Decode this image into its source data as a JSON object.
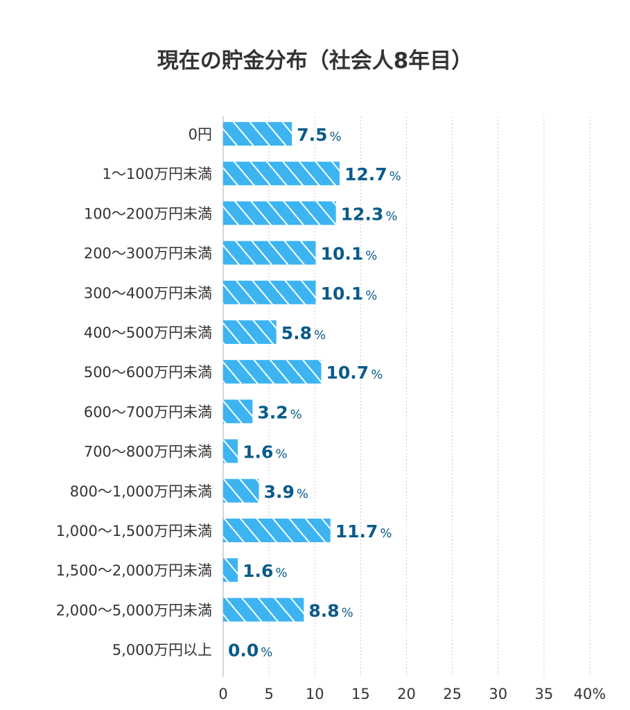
{
  "chart_data": {
    "type": "bar",
    "orientation": "horizontal",
    "title": "現在の貯金分布（社会人8年目）",
    "categories": [
      "0円",
      "1〜100万円未満",
      "100〜200万円未満",
      "200〜300万円未満",
      "300〜400万円未満",
      "400〜500万円未満",
      "500〜600万円未満",
      "600〜700万円未満",
      "700〜800万円未満",
      "800〜1,000万円未満",
      "1,000〜1,500万円未満",
      "1,500〜2,000万円未満",
      "2,000〜5,000万円未満",
      "5,000万円以上"
    ],
    "values": [
      7.5,
      12.7,
      12.3,
      10.1,
      10.1,
      5.8,
      10.7,
      3.2,
      1.6,
      3.9,
      11.7,
      1.6,
      8.8,
      0.0
    ],
    "value_labels": [
      "7.5",
      "12.7",
      "12.3",
      "10.1",
      "10.1",
      "5.8",
      "10.7",
      "3.2",
      "1.6",
      "3.9",
      "11.7",
      "1.6",
      "8.8",
      "0.0"
    ],
    "value_unit": "%",
    "xlim": [
      0,
      40
    ],
    "x_ticks": [
      "0",
      "5",
      "10",
      "15",
      "20",
      "25",
      "30",
      "35",
      "40%"
    ],
    "grid": true,
    "bar_color": "#3db4f2",
    "hatch_color": "#ffffff",
    "label_color": "#0a5a8a"
  }
}
